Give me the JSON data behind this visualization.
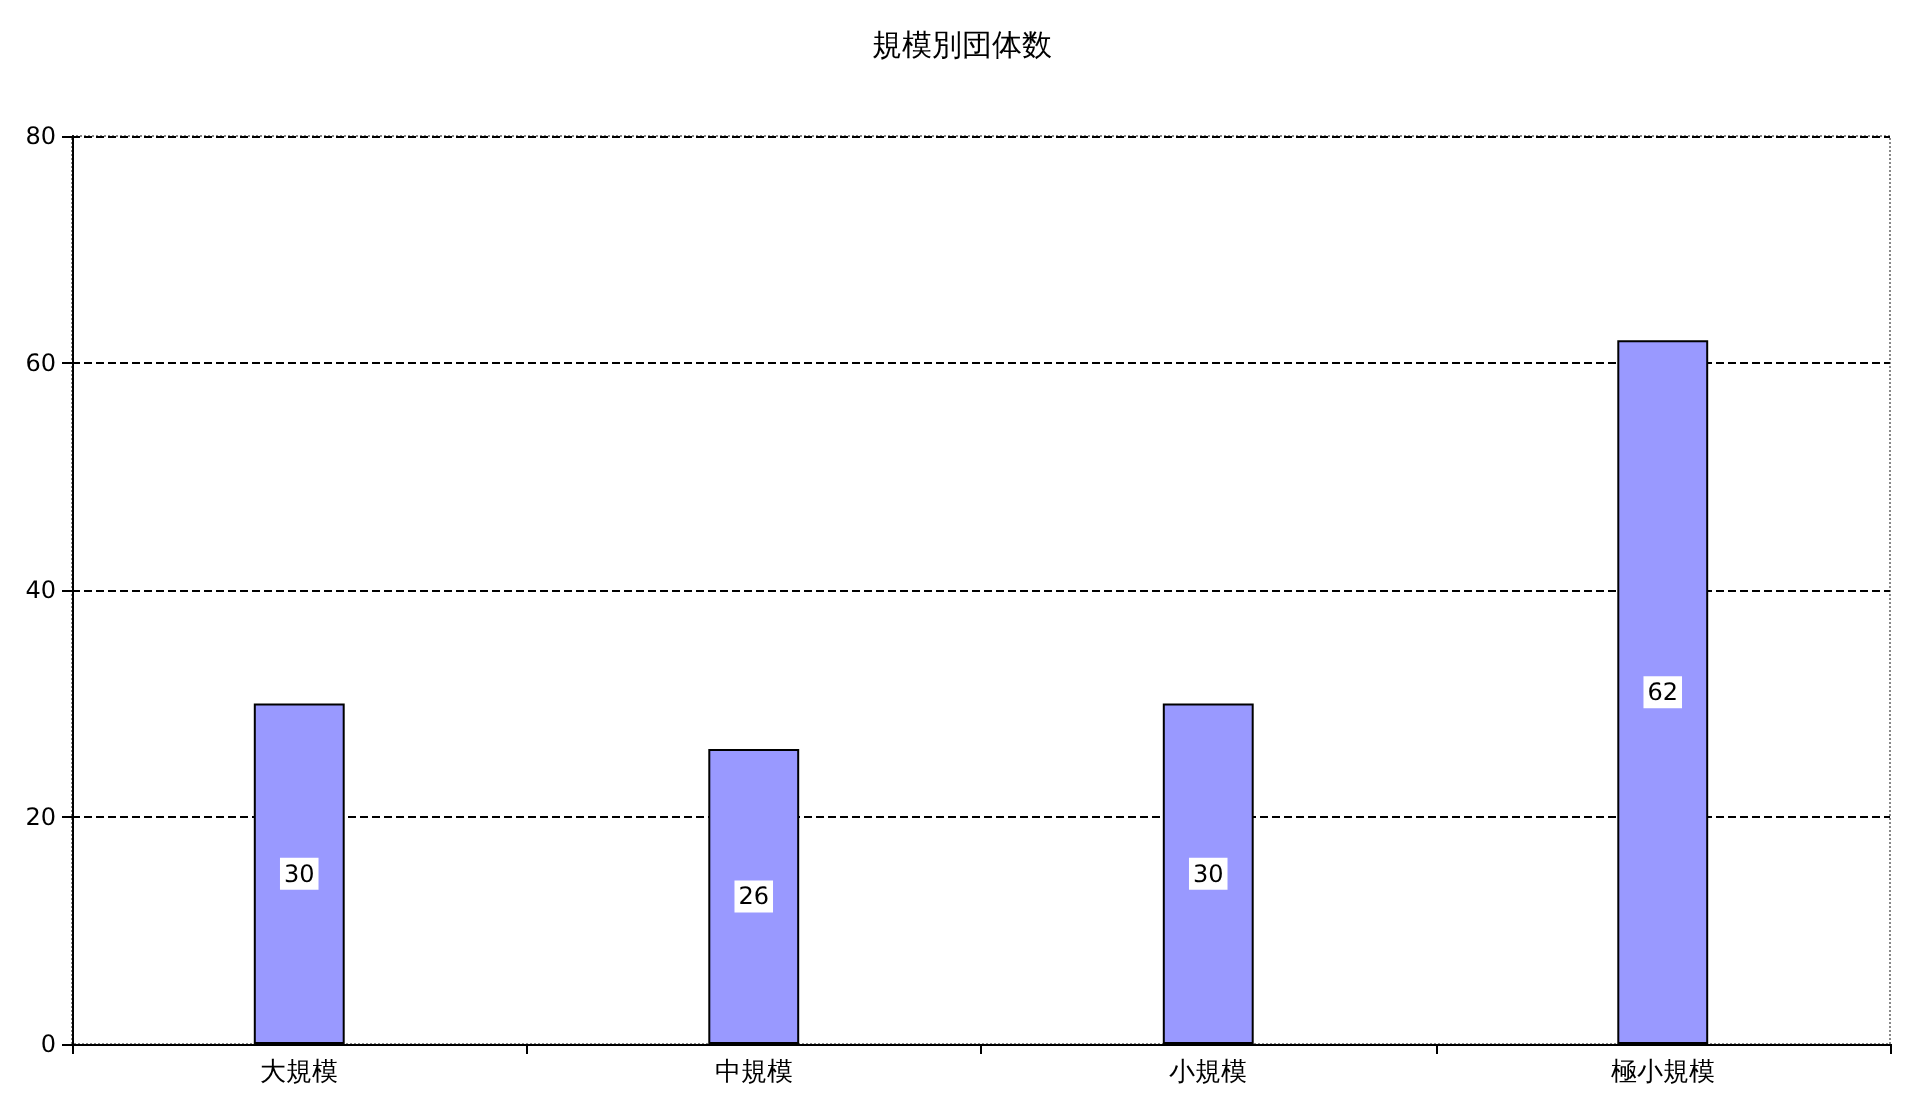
{
  "chart_data": {
    "type": "bar",
    "title": "規模別団体数",
    "categories": [
      "大規模",
      "中規模",
      "小規模",
      "極小規模"
    ],
    "values": [
      30,
      26,
      30,
      62
    ],
    "color": "#9999ff",
    "ylim": [
      0,
      80
    ],
    "yticks": [
      0,
      20,
      40,
      60,
      80
    ],
    "grid": "y",
    "data_labels": true
  }
}
